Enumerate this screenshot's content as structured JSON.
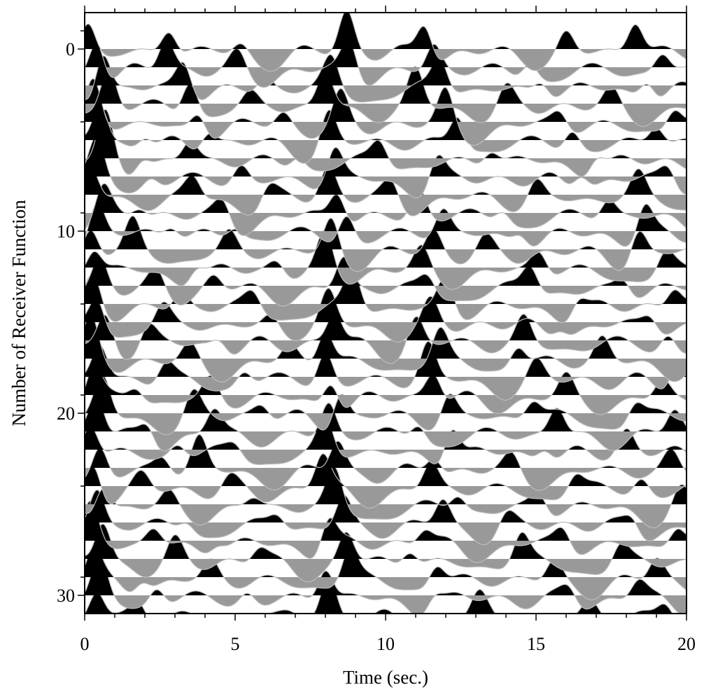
{
  "chart_data": {
    "type": "line",
    "subtype": "receiver-function-wiggle-section",
    "xlabel": "Time (sec.)",
    "ylabel": "Number of Receiver Function",
    "xlim": [
      0,
      20
    ],
    "ylim": [
      31,
      -2
    ],
    "x_ticks": [
      0,
      5,
      10,
      15,
      20
    ],
    "y_ticks": [
      0,
      10,
      20,
      30
    ],
    "trace_count": 32,
    "fill_positive": "#000000",
    "fill_negative": "#999999",
    "trace_line": "#bdbdbd",
    "peak_times": [
      [
        0.1,
        2.8,
        5.2,
        8.7,
        11.3,
        16.0,
        18.3
      ],
      [
        0.4,
        2.7,
        5.1,
        8.8,
        11.6,
        14.8,
        19.2
      ],
      [
        0.6,
        3.3,
        6.0,
        8.2,
        11.8,
        15.2,
        18.7
      ],
      [
        0.8,
        3.5,
        5.5,
        8.0,
        11.0,
        14.0,
        17.5
      ],
      [
        0.3,
        3.8,
        6.6,
        8.5,
        12.0,
        15.8,
        19.6
      ],
      [
        0.5,
        2.0,
        4.1,
        8.1,
        12.4,
        16.2,
        19.0
      ],
      [
        0.7,
        1.9,
        3.5,
        7.1,
        9.8,
        13.5,
        17.0
      ],
      [
        0.4,
        2.2,
        5.2,
        8.3,
        11.7,
        16.5,
        19.4
      ],
      [
        0.2,
        3.6,
        6.1,
        8.1,
        10.2,
        15.0,
        18.4
      ],
      [
        0.6,
        1.8,
        4.6,
        8.4,
        11.1,
        13.9,
        17.4
      ],
      [
        0.4,
        2.9,
        5.0,
        8.7,
        11.9,
        14.5,
        18.6
      ],
      [
        0.2,
        1.6,
        4.8,
        8.2,
        11.6,
        13.3,
        18.4
      ],
      [
        0.3,
        3.7,
        6.4,
        8.0,
        11.2,
        15.1,
        19.3
      ],
      [
        0.5,
        2.4,
        4.3,
        8.6,
        11.4,
        14.8,
        17.9
      ],
      [
        0.3,
        3.2,
        5.6,
        8.9,
        12.0,
        16.4,
        19.6
      ],
      [
        0.4,
        2.6,
        6.2,
        8.1,
        11.5,
        15.8,
        18.8
      ],
      [
        0.7,
        2.1,
        4.5,
        8.3,
        11.0,
        14.6,
        19.4
      ],
      [
        0.2,
        3.5,
        6.8,
        8.0,
        11.8,
        14.4,
        17.2
      ],
      [
        0.5,
        2.7,
        5.3,
        8.0,
        11.4,
        15.0,
        19.7
      ],
      [
        0.3,
        1.7,
        4.2,
        8.2,
        11.6,
        16.0,
        19.2
      ],
      [
        0.6,
        3.6,
        5.9,
        8.5,
        12.1,
        14.9,
        18.3
      ],
      [
        0.4,
        2.1,
        4.3,
        8.1,
        11.1,
        15.7,
        19.6
      ],
      [
        0.2,
        3.1,
        5.0,
        8.0,
        12.2,
        15.3,
        18.0
      ],
      [
        0.5,
        2.6,
        3.8,
        8.4,
        11.6,
        14.2,
        19.5
      ],
      [
        0.3,
        1.9,
        4.8,
        7.9,
        11.5,
        16.3,
        18.5
      ],
      [
        0.6,
        2.8,
        5.6,
        8.3,
        12.4,
        15.1,
        19.8
      ],
      [
        0.4,
        3.4,
        6.4,
        8.6,
        11.9,
        14.0,
        18.2
      ],
      [
        0.2,
        2.3,
        4.4,
        8.1,
        11.3,
        15.9,
        19.7
      ],
      [
        0.6,
        3.0,
        5.8,
        8.7,
        10.8,
        14.5,
        17.8
      ],
      [
        0.3,
        1.9,
        4.2,
        8.8,
        11.7,
        15.6,
        19.0
      ],
      [
        0.5,
        2.4,
        5.4,
        8.0,
        11.6,
        16.1,
        18.4
      ],
      [
        0.4,
        1.8,
        6.0,
        8.1,
        13.1,
        16.8,
        19.3
      ]
    ],
    "peak_amplitudes": [
      [
        1.0,
        0.75,
        0.3,
        1.1,
        1.0,
        0.55,
        0.9
      ],
      [
        1.2,
        0.9,
        0.45,
        0.95,
        0.7,
        0.5,
        0.55
      ],
      [
        1.3,
        0.9,
        0.35,
        0.8,
        0.85,
        0.45,
        0.6
      ],
      [
        1.1,
        1.0,
        0.3,
        1.0,
        0.95,
        0.5,
        0.4
      ],
      [
        1.2,
        0.6,
        0.35,
        0.8,
        0.9,
        0.4,
        0.55
      ],
      [
        1.1,
        0.4,
        0.5,
        0.95,
        0.9,
        0.55,
        0.6
      ],
      [
        1.3,
        0.45,
        0.6,
        0.4,
        0.6,
        0.45,
        0.5
      ],
      [
        1.0,
        0.3,
        0.5,
        0.9,
        0.75,
        0.5,
        0.5
      ],
      [
        0.9,
        0.55,
        0.4,
        0.8,
        0.5,
        0.5,
        0.6
      ],
      [
        0.8,
        0.35,
        0.5,
        0.85,
        0.85,
        0.4,
        0.5
      ],
      [
        0.9,
        0.4,
        0.35,
        0.8,
        0.7,
        0.4,
        0.9
      ],
      [
        0.8,
        0.8,
        0.5,
        1.0,
        0.6,
        0.35,
        0.8
      ],
      [
        0.7,
        0.45,
        0.3,
        0.95,
        0.55,
        0.55,
        0.5
      ],
      [
        0.8,
        0.45,
        0.35,
        0.9,
        0.45,
        0.7,
        0.4
      ],
      [
        0.9,
        0.45,
        0.4,
        1.0,
        0.85,
        0.5,
        0.6
      ],
      [
        1.0,
        0.5,
        0.3,
        0.85,
        0.6,
        0.35,
        0.4
      ],
      [
        0.9,
        0.5,
        0.35,
        0.9,
        0.8,
        0.7,
        0.5
      ],
      [
        1.1,
        0.4,
        0.4,
        1.0,
        0.8,
        0.6,
        0.6
      ],
      [
        1.0,
        0.5,
        0.45,
        0.95,
        0.95,
        0.45,
        0.65
      ],
      [
        0.9,
        0.4,
        0.55,
        0.85,
        0.8,
        0.55,
        0.5
      ],
      [
        1.0,
        0.6,
        0.35,
        0.9,
        0.7,
        0.5,
        0.5
      ],
      [
        1.1,
        0.55,
        0.7,
        0.95,
        0.5,
        0.8,
        0.7
      ],
      [
        1.0,
        0.35,
        0.3,
        0.9,
        1.0,
        0.45,
        0.6
      ],
      [
        0.9,
        0.4,
        0.9,
        0.85,
        0.6,
        0.4,
        0.5
      ],
      [
        1.0,
        0.35,
        0.3,
        0.95,
        0.7,
        0.5,
        0.45
      ],
      [
        0.9,
        0.35,
        0.3,
        1.0,
        0.45,
        0.5,
        0.5
      ],
      [
        1.0,
        0.35,
        0.35,
        0.8,
        0.75,
        0.35,
        0.4
      ],
      [
        1.0,
        0.45,
        0.3,
        0.9,
        0.45,
        0.5,
        0.55
      ],
      [
        1.1,
        0.55,
        0.4,
        0.85,
        0.5,
        0.75,
        0.5
      ],
      [
        0.9,
        0.45,
        0.45,
        0.9,
        0.6,
        0.55,
        0.6
      ],
      [
        1.0,
        0.5,
        0.35,
        0.95,
        0.4,
        0.4,
        0.5
      ],
      [
        0.8,
        0.5,
        0.3,
        1.0,
        0.6,
        0.4,
        0.45
      ]
    ]
  }
}
